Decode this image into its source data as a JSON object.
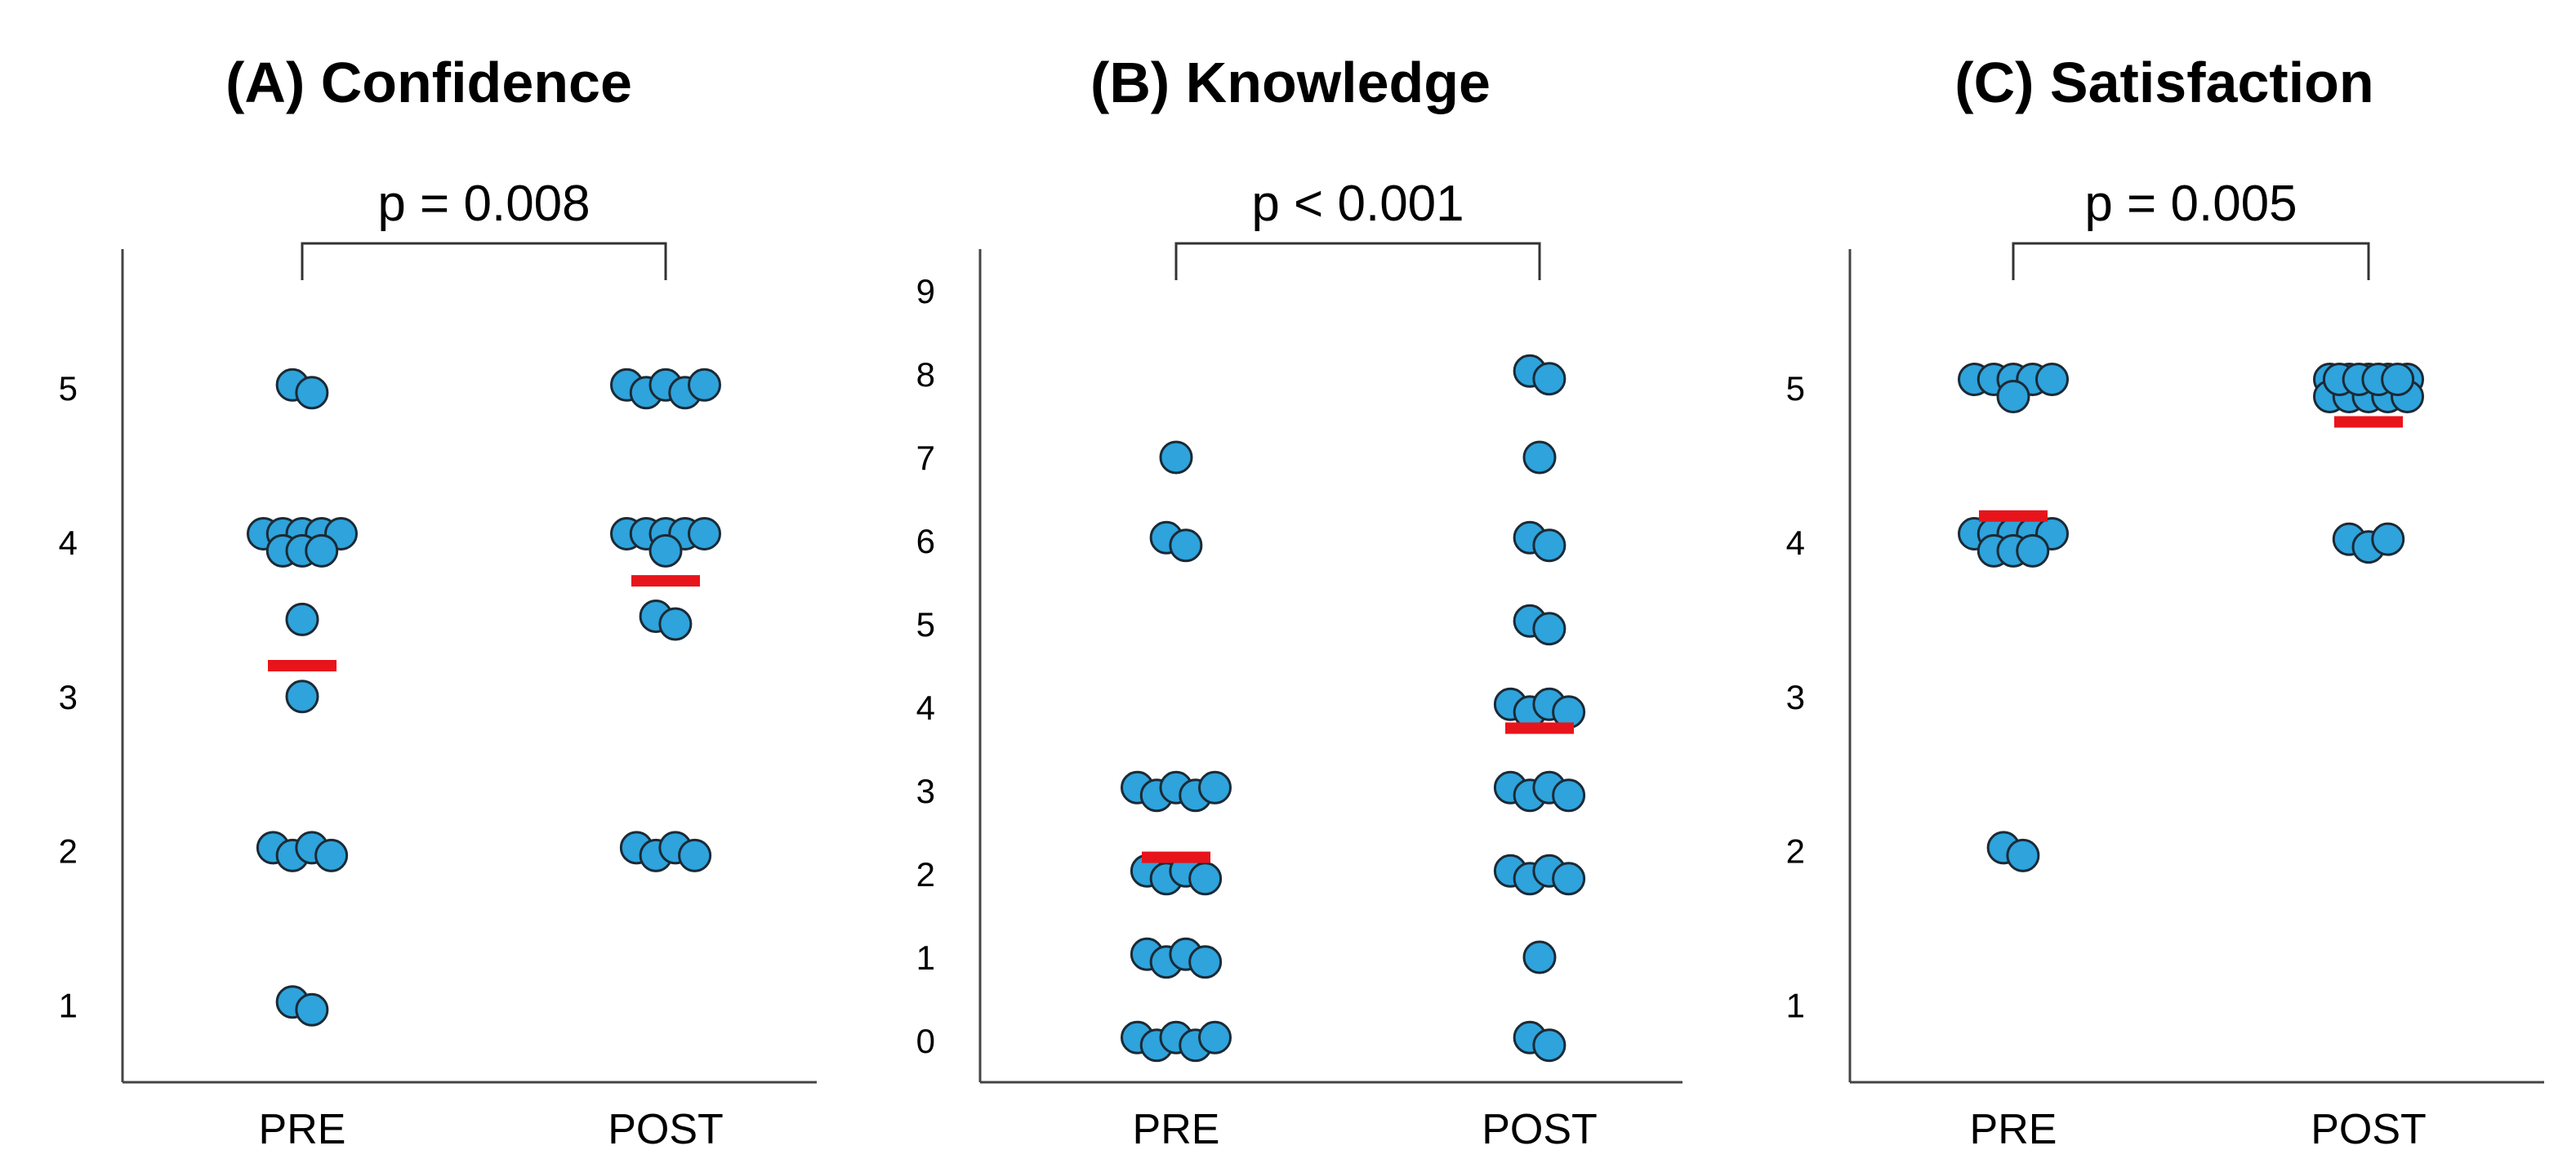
{
  "chart_data": [
    {
      "type": "scatter",
      "title": "(A) Confidence",
      "p_value": "p = 0.008",
      "categories": [
        "PRE",
        "POST"
      ],
      "y_ticks": [
        1,
        2,
        3,
        4,
        5
      ],
      "ylim": [
        0.5,
        5.9
      ],
      "series": [
        {
          "values": [
            5,
            5,
            4,
            4,
            4,
            4,
            4,
            4,
            4,
            4,
            3.5,
            3,
            2,
            2,
            2,
            2,
            1,
            1
          ],
          "mean": 3.2
        },
        {
          "values": [
            5,
            5,
            5,
            5,
            5,
            4,
            4,
            4,
            4,
            4,
            4,
            3.5,
            3.5,
            2,
            2,
            2,
            2
          ],
          "mean": 3.75
        }
      ],
      "colors": {
        "dot": "#2ea3dc",
        "mean": "#e8141b"
      }
    },
    {
      "type": "scatter",
      "title": "(B) Knowledge",
      "p_value": "p < 0.001",
      "categories": [
        "PRE",
        "POST"
      ],
      "y_ticks": [
        0,
        1,
        2,
        3,
        4,
        5,
        6,
        7,
        8,
        9
      ],
      "ylim": [
        -0.5,
        9.5
      ],
      "series": [
        {
          "values": [
            7,
            6,
            6,
            3,
            3,
            3,
            3,
            3,
            2,
            2,
            2,
            2,
            1,
            1,
            1,
            1,
            0,
            0,
            0,
            0,
            0
          ],
          "mean": 2.2
        },
        {
          "values": [
            8,
            8,
            7,
            6,
            6,
            5,
            5,
            4,
            4,
            4,
            4,
            3,
            3,
            3,
            3,
            2,
            2,
            2,
            2,
            1,
            0,
            0
          ],
          "mean": 3.75
        }
      ],
      "colors": {
        "dot": "#2ea3dc",
        "mean": "#e8141b"
      }
    },
    {
      "type": "scatter",
      "title": "(C) Satisfaction",
      "p_value": "p = 0.005",
      "categories": [
        "PRE",
        "POST"
      ],
      "y_ticks": [
        1,
        2,
        3,
        4,
        5
      ],
      "ylim": [
        0.5,
        5.9
      ],
      "series": [
        {
          "values": [
            5,
            5,
            5,
            5,
            5,
            5,
            4,
            4,
            4,
            4,
            4,
            4,
            4,
            4,
            2,
            2
          ],
          "mean": 4.17
        },
        {
          "values": [
            5,
            5,
            5,
            5,
            5,
            5,
            5,
            5,
            5,
            5,
            5,
            5,
            5,
            5,
            4,
            4,
            4
          ],
          "mean": 4.78
        }
      ],
      "colors": {
        "dot": "#2ea3dc",
        "mean": "#e8141b"
      }
    }
  ]
}
